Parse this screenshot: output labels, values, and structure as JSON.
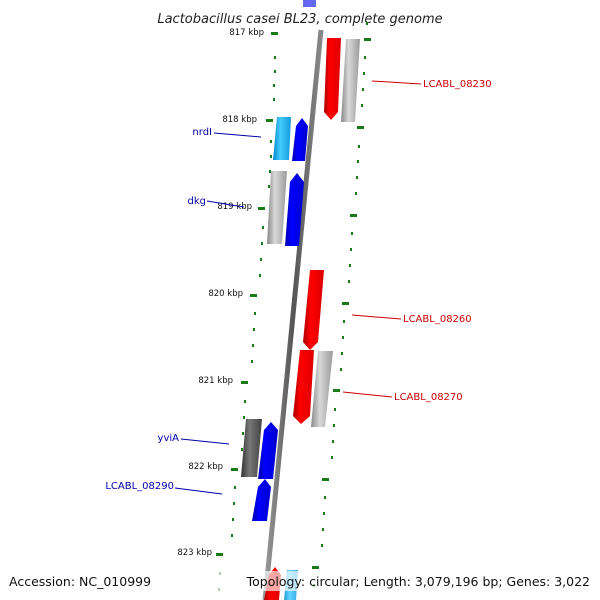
{
  "title": "Lactobacillus casei BL23, complete genome",
  "footer": {
    "accession": "Accession: NC_010999",
    "topology": "Topology: circular; Length: 3,079,196 bp; Genes: 3,022"
  },
  "kbp_labels": [
    "817 kbp",
    "818 kbp",
    "819 kbp",
    "820 kbp",
    "821 kbp",
    "822 kbp",
    "823 kbp"
  ],
  "gene_labels": {
    "lcabl_08230": "LCABL_08230",
    "nrdi": "nrdI",
    "dkg": "dkg",
    "lcabl_08260": "LCABL_08260",
    "lcabl_08270": "LCABL_08270",
    "yvia": "yviA",
    "lcabl_08290": "LCABL_08290"
  },
  "colors": {
    "forward_gene": "#ff0000",
    "reverse_gene": "#0000ff",
    "pseudo_gene": "#b8b8b8",
    "light_gene": "#33bbff",
    "dark_gene": "#555555",
    "tick": "#1a7a1a",
    "backbone": "#777777"
  }
}
